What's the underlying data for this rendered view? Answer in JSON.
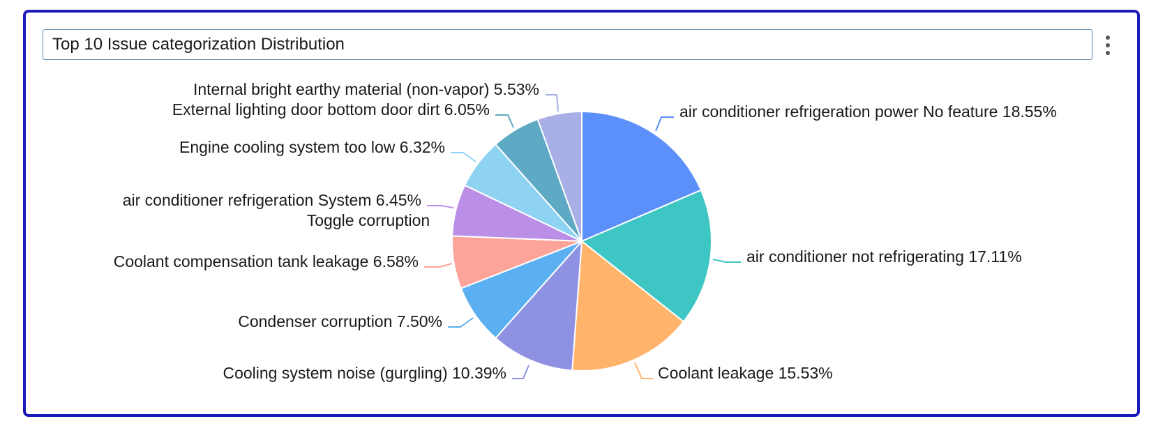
{
  "header": {
    "title": "Top 10 Issue categorization Distribution",
    "menu_icon": "kebab-menu-icon"
  },
  "chart_data": {
    "type": "pie",
    "title": "Top 10 Issue categorization Distribution",
    "slices": [
      {
        "label": "air conditioner refrigeration power No feature",
        "value": 18.55,
        "display": "18.55%",
        "color": "#5b8ff9"
      },
      {
        "label": "air conditioner not refrigerating",
        "value": 17.11,
        "display": "17.11%",
        "color": "#3ec6c4"
      },
      {
        "label": "Coolant leakage",
        "value": 15.53,
        "display": "15.53%",
        "color": "#ffb36b"
      },
      {
        "label": "Cooling system noise (gurgling)",
        "value": 10.39,
        "display": "10.39%",
        "color": "#8f91e3"
      },
      {
        "label": "Condenser corruption",
        "value": 7.5,
        "display": "7.50%",
        "color": "#5ab0f0"
      },
      {
        "label": "Coolant compensation tank leakage",
        "value": 6.58,
        "display": "6.58%",
        "color": "#fca39a"
      },
      {
        "label": "air conditioner refrigeration System Toggle corruption",
        "value": 6.45,
        "display": "6.45%",
        "color": "#bb8fe8",
        "label_lines": [
          "air conditioner refrigeration System",
          "Toggle corruption"
        ]
      },
      {
        "label": "Engine cooling system too low",
        "value": 6.32,
        "display": "6.32%",
        "color": "#8fd3f3"
      },
      {
        "label": "External lighting door bottom door dirt",
        "value": 6.05,
        "display": "6.05%",
        "color": "#5ea9c4"
      },
      {
        "label": "Internal bright earthy material (non-vapor)",
        "value": 5.53,
        "display": "5.53%",
        "color": "#a7afe6"
      }
    ]
  }
}
